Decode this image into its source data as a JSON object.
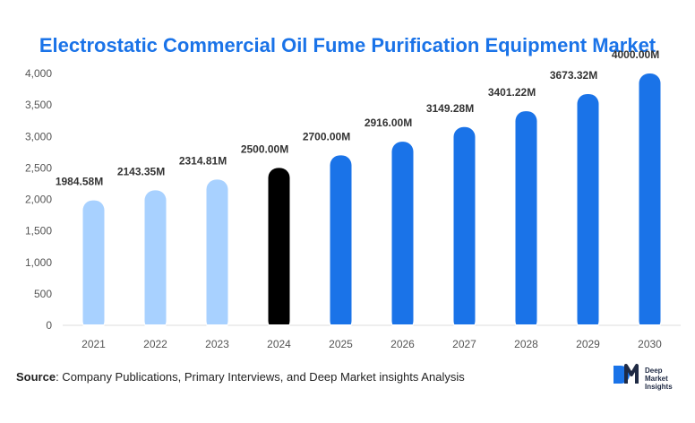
{
  "title": "Electrostatic Commercial Oil Fume Purification Equipment Market",
  "source_label": "Source",
  "source_text": ": Company Publications, Primary Interviews, and Deep Market insights Analysis",
  "logo": {
    "mark": "DM",
    "line1": "Deep",
    "line2": "Market",
    "line3": "Insights"
  },
  "colors": {
    "historic": "#a8d1ff",
    "base": "#000000",
    "forecast": "#1a73e8",
    "title": "#1a73e8"
  },
  "chart_data": {
    "type": "bar",
    "title": "Electrostatic Commercial Oil Fume Purification Equipment Market",
    "xlabel": "",
    "ylabel": "",
    "categories": [
      "2021",
      "2022",
      "2023",
      "2024",
      "2025",
      "2026",
      "2027",
      "2028",
      "2029",
      "2030"
    ],
    "values": [
      1984.58,
      2143.35,
      2314.81,
      2500.0,
      2700.0,
      2916.0,
      3149.28,
      3401.22,
      3673.32,
      4000.0
    ],
    "labels": [
      "1984.58M",
      "2143.35M",
      "2314.81M",
      "2500.00M",
      "2700.00M",
      "2916.00M",
      "3149.28M",
      "3401.22M",
      "3673.32M",
      "4000.00M"
    ],
    "bar_groups": [
      "historic",
      "historic",
      "historic",
      "base",
      "forecast",
      "forecast",
      "forecast",
      "forecast",
      "forecast",
      "forecast"
    ],
    "yticks": [
      "0",
      "500",
      "1,000",
      "1,500",
      "2,000",
      "2,500",
      "3,000",
      "3,500",
      "4,000"
    ],
    "ylim": [
      0,
      4000
    ],
    "grid": false,
    "legend": "none"
  }
}
